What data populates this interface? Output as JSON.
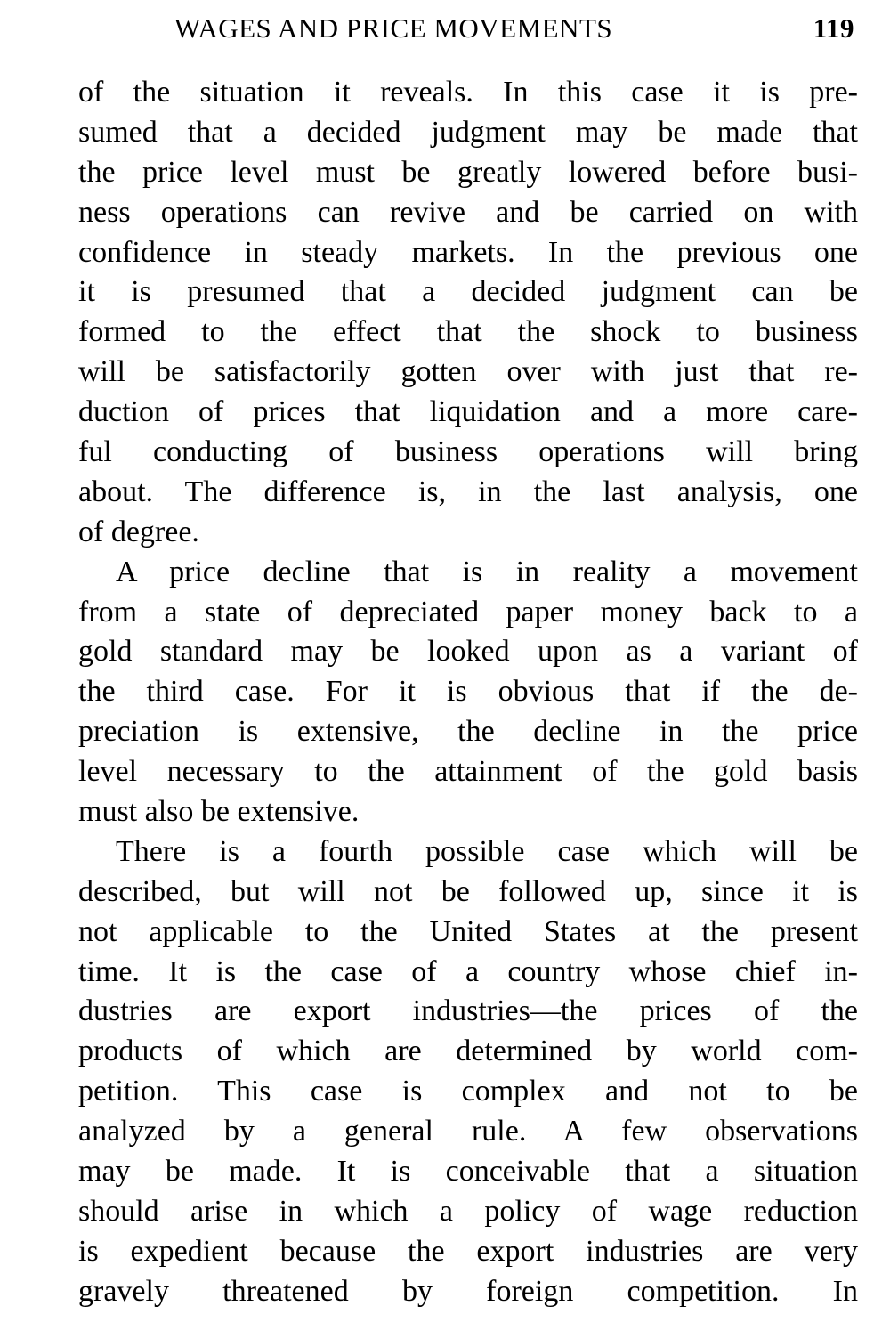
{
  "header": {
    "title": "WAGES AND PRICE MOVEMENTS",
    "page_number": "119"
  },
  "paragraphs": [
    {
      "indent": false,
      "lines": [
        "of the situation it reveals. In this case it is pre-",
        "sumed that a decided judgment may be made that",
        "the price level must be greatly lowered before busi-",
        "ness operations can revive and be carried on with",
        "confidence in steady markets. In the previous one",
        "it is presumed that a decided judgment can be",
        "formed to the effect that the shock to business",
        "will be satisfactorily gotten over with just that re-",
        "duction of prices that liquidation and a more care-",
        "ful conducting of business operations will bring",
        "about. The difference is, in the last analysis, one",
        "of degree."
      ]
    },
    {
      "indent": true,
      "lines": [
        "A price decline that is in reality a movement",
        "from a state of depreciated paper money back to a",
        "gold standard may be looked upon as a variant of",
        "the third case. For it is obvious that if the de-",
        "preciation is extensive, the decline in the price",
        "level necessary to the attainment of the gold basis",
        "must also be extensive."
      ]
    },
    {
      "indent": true,
      "lines": [
        "There is a fourth possible case which will be",
        "described, but will not be followed up, since it is",
        "not applicable to the United States at the present",
        "time. It is the case of a country whose chief in-",
        "dustries are export industries—the prices of the",
        "products of which are determined by world com-",
        "petition. This case is complex and not to be",
        "analyzed by a general rule. A few observations",
        "may be made. It is conceivable that a situation",
        "should arise in which a policy of wage reduction",
        "is expedient because the export industries are very",
        "gravely threatened by foreign competition. In"
      ],
      "continues": true
    }
  ]
}
